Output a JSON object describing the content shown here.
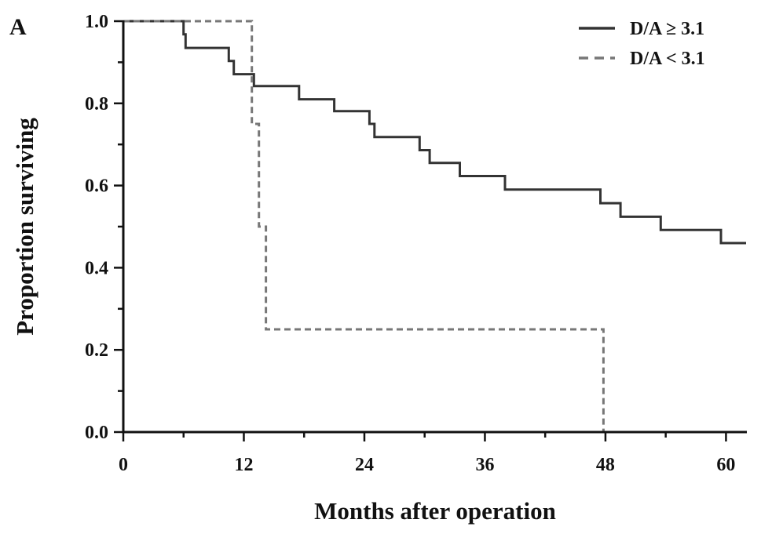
{
  "panel_label": "A",
  "chart_data": {
    "type": "line",
    "subtype": "kaplan-meier step",
    "xlabel": "Months after operation",
    "ylabel": "Proportion surviving",
    "xlim": [
      0,
      62
    ],
    "ylim": [
      0,
      1.0
    ],
    "x_ticks": [
      0,
      12,
      24,
      36,
      48,
      60
    ],
    "y_ticks": [
      0.0,
      0.2,
      0.4,
      0.6,
      0.8,
      1.0
    ],
    "y_tick_labels": [
      "0.0",
      "0.2",
      "0.4",
      "0.6",
      "0.8",
      "1.0"
    ],
    "grid": false,
    "legend_position": "top-right",
    "series": [
      {
        "name": "D/A ≥ 3.1",
        "line_style": "solid",
        "color": "#333333",
        "steps": [
          [
            0,
            1.0
          ],
          [
            6.0,
            0.968
          ],
          [
            6.2,
            0.935
          ],
          [
            10.5,
            0.903
          ],
          [
            11.0,
            0.871
          ],
          [
            13.0,
            0.842
          ],
          [
            17.5,
            0.81
          ],
          [
            21.0,
            0.781
          ],
          [
            24.5,
            0.75
          ],
          [
            25.0,
            0.718
          ],
          [
            29.5,
            0.686
          ],
          [
            30.5,
            0.655
          ],
          [
            33.5,
            0.623
          ],
          [
            38.0,
            0.59
          ],
          [
            47.5,
            0.557
          ],
          [
            49.5,
            0.524
          ],
          [
            53.5,
            0.492
          ],
          [
            59.5,
            0.46
          ],
          [
            62.0,
            0.46
          ]
        ]
      },
      {
        "name": "D/A < 3.1",
        "line_style": "dashed",
        "color": "#777777",
        "steps": [
          [
            0,
            1.0
          ],
          [
            12.8,
            0.75
          ],
          [
            13.5,
            0.5
          ],
          [
            14.2,
            0.25
          ],
          [
            47.8,
            0.0
          ]
        ]
      }
    ]
  }
}
